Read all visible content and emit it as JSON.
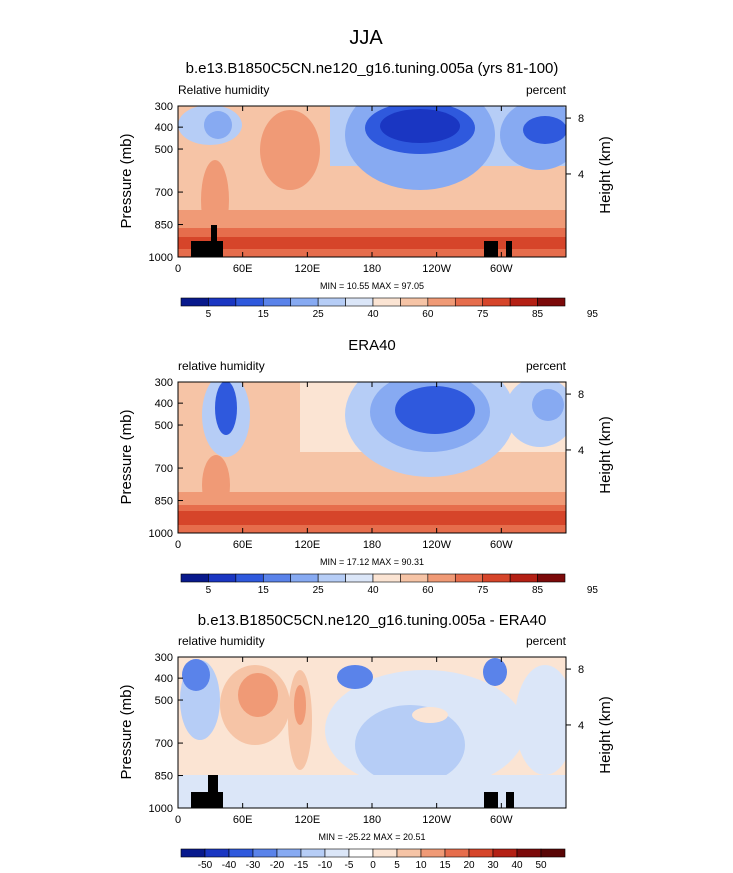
{
  "figure": {
    "title": "JJA"
  },
  "chart_data": [
    {
      "type": "heatmap",
      "title": "b.e13.B1850C5CN.ne120_g16.tuning.005a (yrs 81-100)",
      "left_label": "Relative humidity",
      "right_label": "percent",
      "ylabel": "Pressure (mb)",
      "ylabel_right": "Height (km)",
      "xticks": [
        "0",
        "60E",
        "120E",
        "180",
        "120W",
        "60W"
      ],
      "yticks": [
        "300",
        "400",
        "500",
        "700",
        "850",
        "1000"
      ],
      "yticks_right": [
        "8",
        "4"
      ],
      "stats": "MIN =  10.55  MAX =  97.05",
      "colorbar": [
        "5",
        "15",
        "25",
        "40",
        "60",
        "75",
        "85",
        "95"
      ]
    },
    {
      "type": "heatmap",
      "title": "ERA40",
      "left_label": "relative humidity",
      "right_label": "percent",
      "ylabel": "Pressure (mb)",
      "ylabel_right": "Height (km)",
      "xticks": [
        "0",
        "60E",
        "120E",
        "180",
        "120W",
        "60W"
      ],
      "yticks": [
        "300",
        "400",
        "500",
        "700",
        "850",
        "1000"
      ],
      "yticks_right": [
        "8",
        "4"
      ],
      "stats": "MIN =  17.12  MAX =  90.31",
      "colorbar": [
        "5",
        "15",
        "25",
        "40",
        "60",
        "75",
        "85",
        "95"
      ]
    },
    {
      "type": "heatmap",
      "title": "b.e13.B1850C5CN.ne120_g16.tuning.005a - ERA40",
      "left_label": "relative humidity",
      "right_label": "percent",
      "ylabel": "Pressure (mb)",
      "ylabel_right": "Height (km)",
      "xticks": [
        "0",
        "60E",
        "120E",
        "180",
        "120W",
        "60W"
      ],
      "yticks": [
        "300",
        "400",
        "500",
        "700",
        "850",
        "1000"
      ],
      "yticks_right": [
        "8",
        "4"
      ],
      "stats": "MIN = -25.22  MAX =  20.51",
      "colorbar": [
        "-50",
        "-40",
        "-30",
        "-20",
        "-15",
        "-10",
        "-5",
        "0",
        "5",
        "10",
        "15",
        "20",
        "30",
        "40",
        "50"
      ]
    }
  ],
  "colors": {
    "palette_abs": [
      "#08198c",
      "#1a36c2",
      "#2f59dd",
      "#5a83ea",
      "#87aaf2",
      "#b6cdf6",
      "#dbe6f8",
      "#fbe4d3",
      "#f6c4a6",
      "#f09a76",
      "#e66d4c",
      "#d6452a",
      "#b42014",
      "#7c0a0a"
    ],
    "palette_diff": [
      "#08198c",
      "#1a36c2",
      "#2f59dd",
      "#5a83ea",
      "#87aaf2",
      "#b6cdf6",
      "#dbe6f8",
      "#ffffff",
      "#fbe4d3",
      "#f6c4a6",
      "#f09a76",
      "#e66d4c",
      "#d6452a",
      "#b42014",
      "#7c0a0a",
      "#5a0606"
    ]
  }
}
